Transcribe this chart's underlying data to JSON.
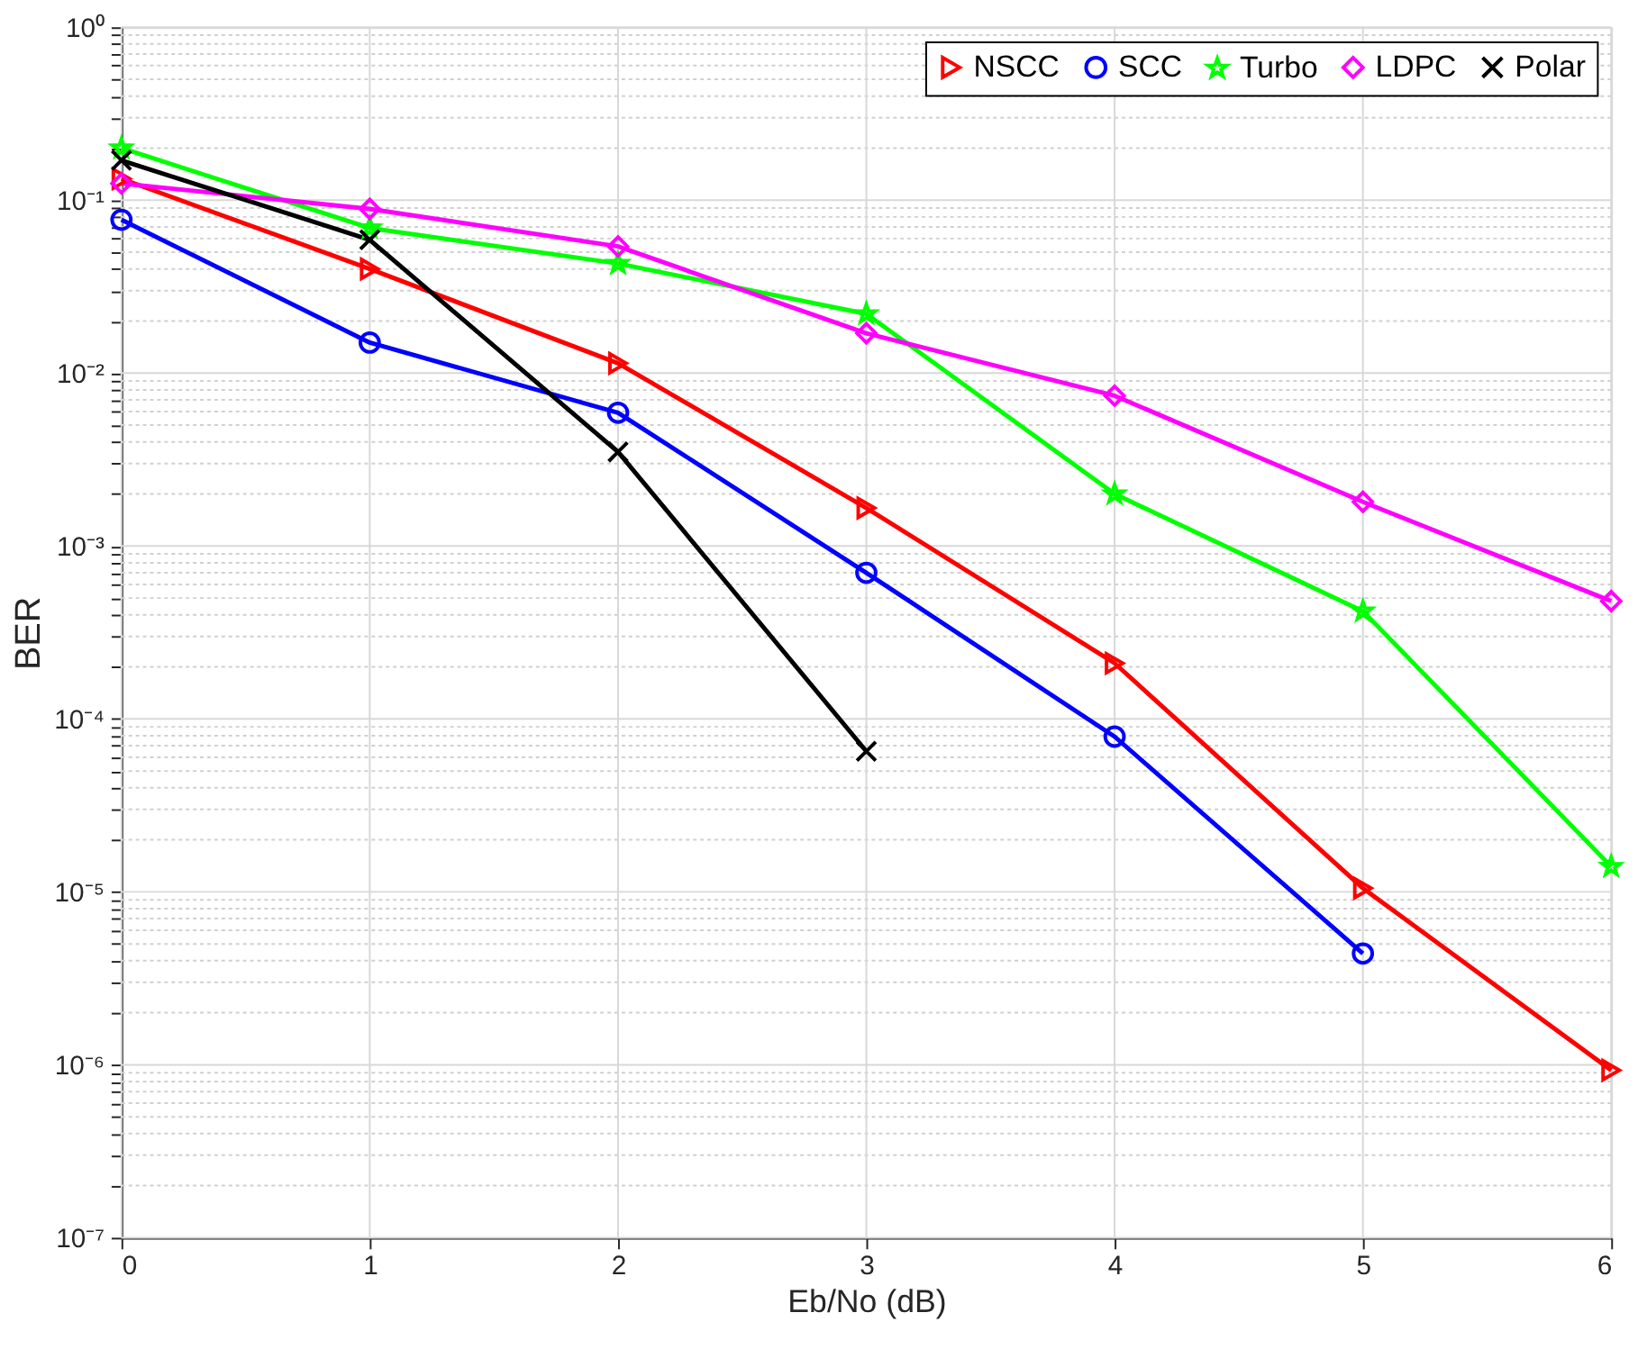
{
  "chart_data": {
    "type": "line",
    "xlabel": "Eb/No (dB)",
    "ylabel": "BER",
    "log": "y",
    "grid": true,
    "legend": "top right",
    "line_style": "solid",
    "x": [
      0,
      1,
      2,
      3,
      4,
      5,
      6
    ],
    "xlim": [
      0,
      6
    ],
    "xticks": [
      0,
      1,
      2,
      3,
      4,
      5,
      6
    ],
    "ylim": [
      1e-07,
      1
    ],
    "yticks": [
      {
        "value": 1e-07,
        "label": "10⁻⁷"
      },
      {
        "value": 2e-07,
        "label": null
      },
      {
        "value": 3e-07,
        "label": null
      },
      {
        "value": 4e-07,
        "label": null
      },
      {
        "value": 5e-07,
        "label": null
      },
      {
        "value": 6e-07,
        "label": null
      },
      {
        "value": 7e-07,
        "label": null
      },
      {
        "value": 8e-07,
        "label": null
      },
      {
        "value": 9e-07,
        "label": null
      },
      {
        "value": 1e-06,
        "label": "10⁻⁶"
      },
      {
        "value": 2e-06,
        "label": null
      },
      {
        "value": 3e-06,
        "label": null
      },
      {
        "value": 4e-06,
        "label": null
      },
      {
        "value": 5e-06,
        "label": null
      },
      {
        "value": 6e-06,
        "label": null
      },
      {
        "value": 7e-06,
        "label": null
      },
      {
        "value": 8e-06,
        "label": null
      },
      {
        "value": 9e-06,
        "label": null
      },
      {
        "value": 1e-05,
        "label": "10⁻⁵"
      },
      {
        "value": 2e-05,
        "label": null
      },
      {
        "value": 3e-05,
        "label": null
      },
      {
        "value": 4e-05,
        "label": null
      },
      {
        "value": 5e-05,
        "label": null
      },
      {
        "value": 6e-05,
        "label": null
      },
      {
        "value": 7e-05,
        "label": null
      },
      {
        "value": 8e-05,
        "label": null
      },
      {
        "value": 9e-05,
        "label": null
      },
      {
        "value": 0.0001,
        "label": "10⁻⁴"
      },
      {
        "value": 0.0002,
        "label": null
      },
      {
        "value": 0.0003,
        "label": null
      },
      {
        "value": 0.0004,
        "label": null
      },
      {
        "value": 0.0005,
        "label": null
      },
      {
        "value": 0.0006,
        "label": null
      },
      {
        "value": 0.0007,
        "label": null
      },
      {
        "value": 0.0008,
        "label": null
      },
      {
        "value": 0.0009,
        "label": null
      },
      {
        "value": 0.001,
        "label": "10⁻³"
      },
      {
        "value": 0.002,
        "label": null
      },
      {
        "value": 0.003,
        "label": null
      },
      {
        "value": 0.004,
        "label": null
      },
      {
        "value": 0.005,
        "label": null
      },
      {
        "value": 0.006,
        "label": null
      },
      {
        "value": 0.007,
        "label": null
      },
      {
        "value": 0.008,
        "label": null
      },
      {
        "value": 0.009,
        "label": null
      },
      {
        "value": 0.01,
        "label": "10⁻²"
      },
      {
        "value": 0.02,
        "label": null
      },
      {
        "value": 0.03,
        "label": null
      },
      {
        "value": 0.04,
        "label": null
      },
      {
        "value": 0.05,
        "label": null
      },
      {
        "value": 0.06,
        "label": null
      },
      {
        "value": 0.07,
        "label": null
      },
      {
        "value": 0.08,
        "label": null
      },
      {
        "value": 0.09,
        "label": null
      },
      {
        "value": 0.1,
        "label": "10⁻¹"
      },
      {
        "value": 0.2,
        "label": null
      },
      {
        "value": 0.3,
        "label": null
      },
      {
        "value": 0.4,
        "label": null
      },
      {
        "value": 0.5,
        "label": null
      },
      {
        "value": 0.6,
        "label": null
      },
      {
        "value": 0.7,
        "label": null
      },
      {
        "value": 0.8,
        "label": null
      },
      {
        "value": 0.9,
        "label": null
      },
      {
        "value": 1,
        "label": "10⁰"
      }
    ],
    "series": [
      {
        "name": "NSCC",
        "color": "#ff0000",
        "marker": "triangle",
        "values": [
          0.133,
          0.04,
          0.0114,
          0.00166,
          0.00021,
          1.05e-05,
          9.3e-07
        ]
      },
      {
        "name": "SCC",
        "color": "#0000ff",
        "marker": "circle",
        "values": [
          0.077,
          0.015,
          0.0059,
          0.0007,
          7.9e-05,
          4.4e-06,
          null
        ]
      },
      {
        "name": "Turbo",
        "color": "#00ff00",
        "marker": "star",
        "values": [
          0.2,
          0.069,
          0.043,
          0.022,
          0.002,
          0.00042,
          1.4e-05
        ]
      },
      {
        "name": "LDPC",
        "color": "#ff00ff",
        "marker": "diamond",
        "values": [
          0.125,
          0.089,
          0.054,
          0.017,
          0.0074,
          0.0018,
          0.00048
        ]
      },
      {
        "name": "Polar",
        "color": "#000000",
        "marker": "cross",
        "values": [
          0.17,
          0.059,
          0.0035,
          6.5e-05,
          null,
          null,
          null
        ]
      }
    ]
  }
}
